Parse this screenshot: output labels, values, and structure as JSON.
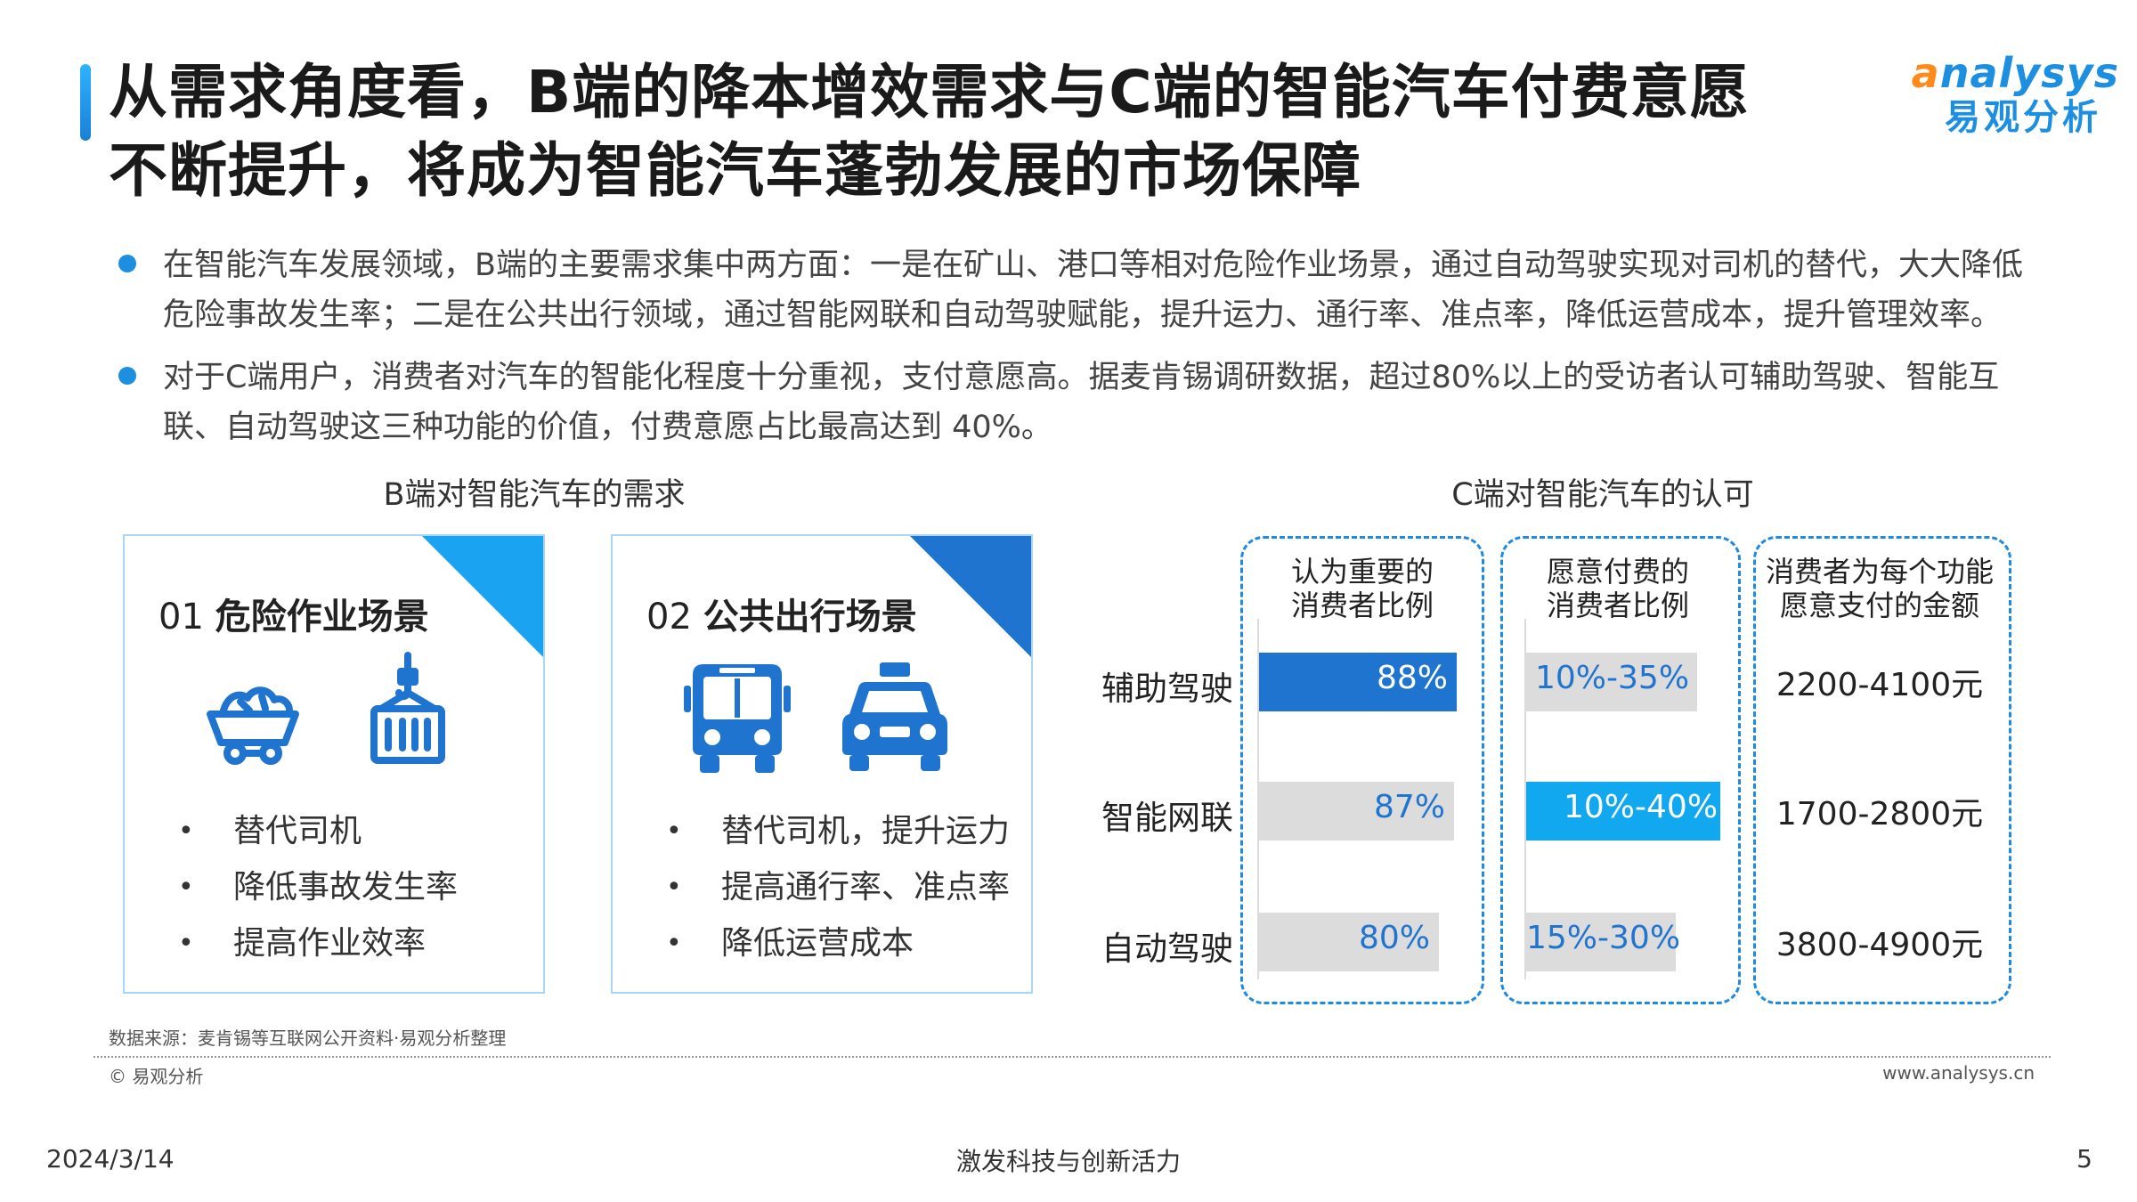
{
  "header": {
    "title_line1": "从需求角度看，B端的降本增效需求与C端的智能汽车付费意愿",
    "title_line2": "不断提升，将成为智能汽车蓬勃发展的市场保障",
    "logo_en_initial": "a",
    "logo_en_rest": "nalysys",
    "logo_cn": "易观分析"
  },
  "bullets": [
    "在智能汽车发展领域，B端的主要需求集中两方面：一是在矿山、港口等相对危险作业场景，通过自动驾驶实现对司机的替代，大大降低危险事故发生率；二是在公共出行领域，通过智能网联和自动驾驶赋能，提升运力、通行率、准点率，降低运营成本，提升管理效率。",
    "对于C端用户，消费者对汽车的智能化程度十分重视，支付意愿高。据麦肯锡调研数据，超过80%以上的受访者认可辅助驾驶、智能互联、自动驾驶这三种功能的价值，付费意愿占比最高达到 40%。"
  ],
  "b_section": {
    "title": "B端对智能汽车的需求",
    "cards": [
      {
        "num": "01",
        "title": "危险作业场景",
        "icons": [
          "mine-cart-icon",
          "crane-container-icon"
        ],
        "items": [
          "替代司机",
          "降低事故发生率",
          "提高作业效率"
        ]
      },
      {
        "num": "02",
        "title": "公共出行场景",
        "icons": [
          "bus-icon",
          "taxi-icon"
        ],
        "items": [
          "替代司机，提升运力",
          "提高通行率、准点率",
          "降低运营成本"
        ]
      }
    ]
  },
  "c_section": {
    "title": "C端对智能汽车的认可",
    "col_heads": [
      [
        "认为重要的",
        "消费者比例"
      ],
      [
        "愿意付费的",
        "消费者比例"
      ],
      [
        "消费者为每个功能",
        "愿意支付的金额"
      ]
    ],
    "rows": [
      {
        "label": "辅助驾驶",
        "important": "88%",
        "pay": "10%-35%",
        "amount": "2200-4100元"
      },
      {
        "label": "智能网联",
        "important": "87%",
        "pay": "10%-40%",
        "amount": "1700-2800元"
      },
      {
        "label": "自动驾驶",
        "important": "80%",
        "pay": "15%-30%",
        "amount": "3800-4900元"
      }
    ]
  },
  "chart_data": {
    "type": "bar",
    "title": "C端对智能汽车的认可",
    "categories": [
      "辅助驾驶",
      "智能网联",
      "自动驾驶"
    ],
    "series": [
      {
        "name": "认为重要的消费者比例",
        "values": [
          88,
          87,
          80
        ]
      },
      {
        "name": "愿意付费的消费者比例",
        "values": [
          "10%-35%",
          "10%-40%",
          "15%-30%"
        ]
      },
      {
        "name": "消费者为每个功能愿意支付的金额",
        "values": [
          "2200-4100元",
          "1700-2800元",
          "3800-4900元"
        ]
      }
    ],
    "colors": {
      "highlight": "#1f74d0",
      "highlight2": "#12a8f0",
      "neutral": "#dcdcdc"
    }
  },
  "footer": {
    "source": "数据来源：麦肯锡等互联网公开资料·易观分析整理",
    "copyright": "© 易观分析",
    "website": "www.analysys.cn",
    "date": "2024/3/14",
    "slogan": "激发科技与创新活力",
    "page": "5"
  }
}
